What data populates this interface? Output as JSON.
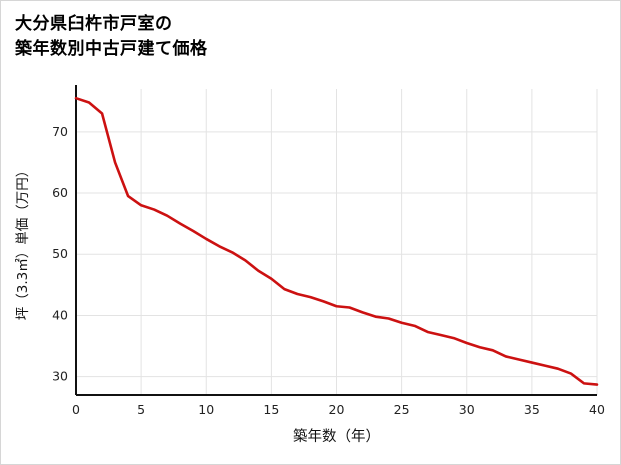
{
  "title": {
    "line1": "大分県臼杵市戸室の",
    "line2": "築年数別中古戸建て価格"
  },
  "colors": {
    "line": "#cc1111",
    "grid": "#e3e3e3",
    "axis": "#111111",
    "tick_text": "#222222"
  },
  "chart_data": {
    "type": "line",
    "title": "大分県臼杵市戸室の築年数別中古戸建て価格",
    "xlabel": "築年数（年）",
    "ylabel": "坪（3.3㎡）単価（万円）",
    "x": [
      0,
      1,
      2,
      3,
      4,
      5,
      6,
      7,
      8,
      9,
      10,
      11,
      12,
      13,
      14,
      15,
      16,
      17,
      18,
      19,
      20,
      21,
      22,
      23,
      24,
      25,
      26,
      27,
      28,
      29,
      30,
      31,
      32,
      33,
      34,
      35,
      36,
      37,
      38,
      39,
      40
    ],
    "values": [
      75.5,
      74.8,
      73.0,
      65.0,
      59.5,
      58.0,
      57.3,
      56.3,
      55.0,
      53.8,
      52.5,
      51.3,
      50.3,
      49.0,
      47.3,
      46.0,
      44.3,
      43.5,
      43.0,
      42.3,
      41.5,
      41.3,
      40.5,
      39.8,
      39.5,
      38.8,
      38.3,
      37.3,
      36.8,
      36.3,
      35.5,
      34.8,
      34.3,
      33.3,
      32.8,
      32.3,
      31.8,
      31.3,
      30.5,
      28.9,
      28.7
    ],
    "xlim": [
      0,
      40
    ],
    "ylim": [
      27,
      77
    ],
    "xticks": [
      0,
      5,
      10,
      15,
      20,
      25,
      30,
      35,
      40
    ],
    "yticks": [
      30,
      40,
      50,
      60,
      70
    ],
    "grid": true,
    "legend": "none"
  }
}
